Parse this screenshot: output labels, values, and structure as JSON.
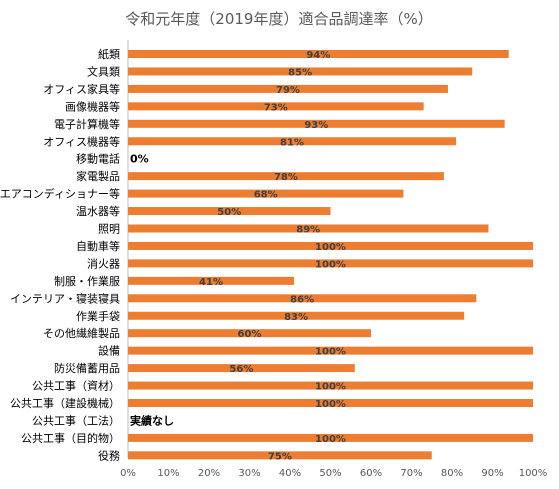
{
  "chart_data": {
    "type": "bar",
    "orientation": "horizontal",
    "title": "令和元年度（2019年度）適合品調達率（%）",
    "categories": [
      "紙類",
      "文具類",
      "オフィス家具等",
      "画像機器等",
      "電子計算機等",
      "オフィス機器等",
      "移動電話",
      "家電製品",
      "エアコンディショナー等",
      "温水器等",
      "照明",
      "自動車等",
      "消火器",
      "制服・作業服",
      "インテリア・寝装寝具",
      "作業手袋",
      "その他繊維製品",
      "設備",
      "防災備蓄用品",
      "公共工事（資材）",
      "公共工事（建設機械）",
      "公共工事（工法）",
      "公共工事（目的物）",
      "役務"
    ],
    "values": [
      94,
      85,
      79,
      73,
      93,
      81,
      0,
      78,
      68,
      50,
      89,
      100,
      100,
      41,
      86,
      83,
      60,
      100,
      56,
      100,
      100,
      null,
      100,
      75
    ],
    "data_labels": [
      "94%",
      "85%",
      "79%",
      "73%",
      "93%",
      "81%",
      "0%",
      "78%",
      "68%",
      "50%",
      "89%",
      "100%",
      "100%",
      "41%",
      "86%",
      "83%",
      "60%",
      "100%",
      "56%",
      "100%",
      "100%",
      "実績なし",
      "100%",
      "75%"
    ],
    "xlim": [
      0,
      100
    ],
    "x_ticks": [
      "0%",
      "10%",
      "20%",
      "30%",
      "40%",
      "50%",
      "60%",
      "70%",
      "80%",
      "90%",
      "100%"
    ],
    "bar_color": "#ED7D31",
    "grid": false,
    "legend": "none"
  }
}
